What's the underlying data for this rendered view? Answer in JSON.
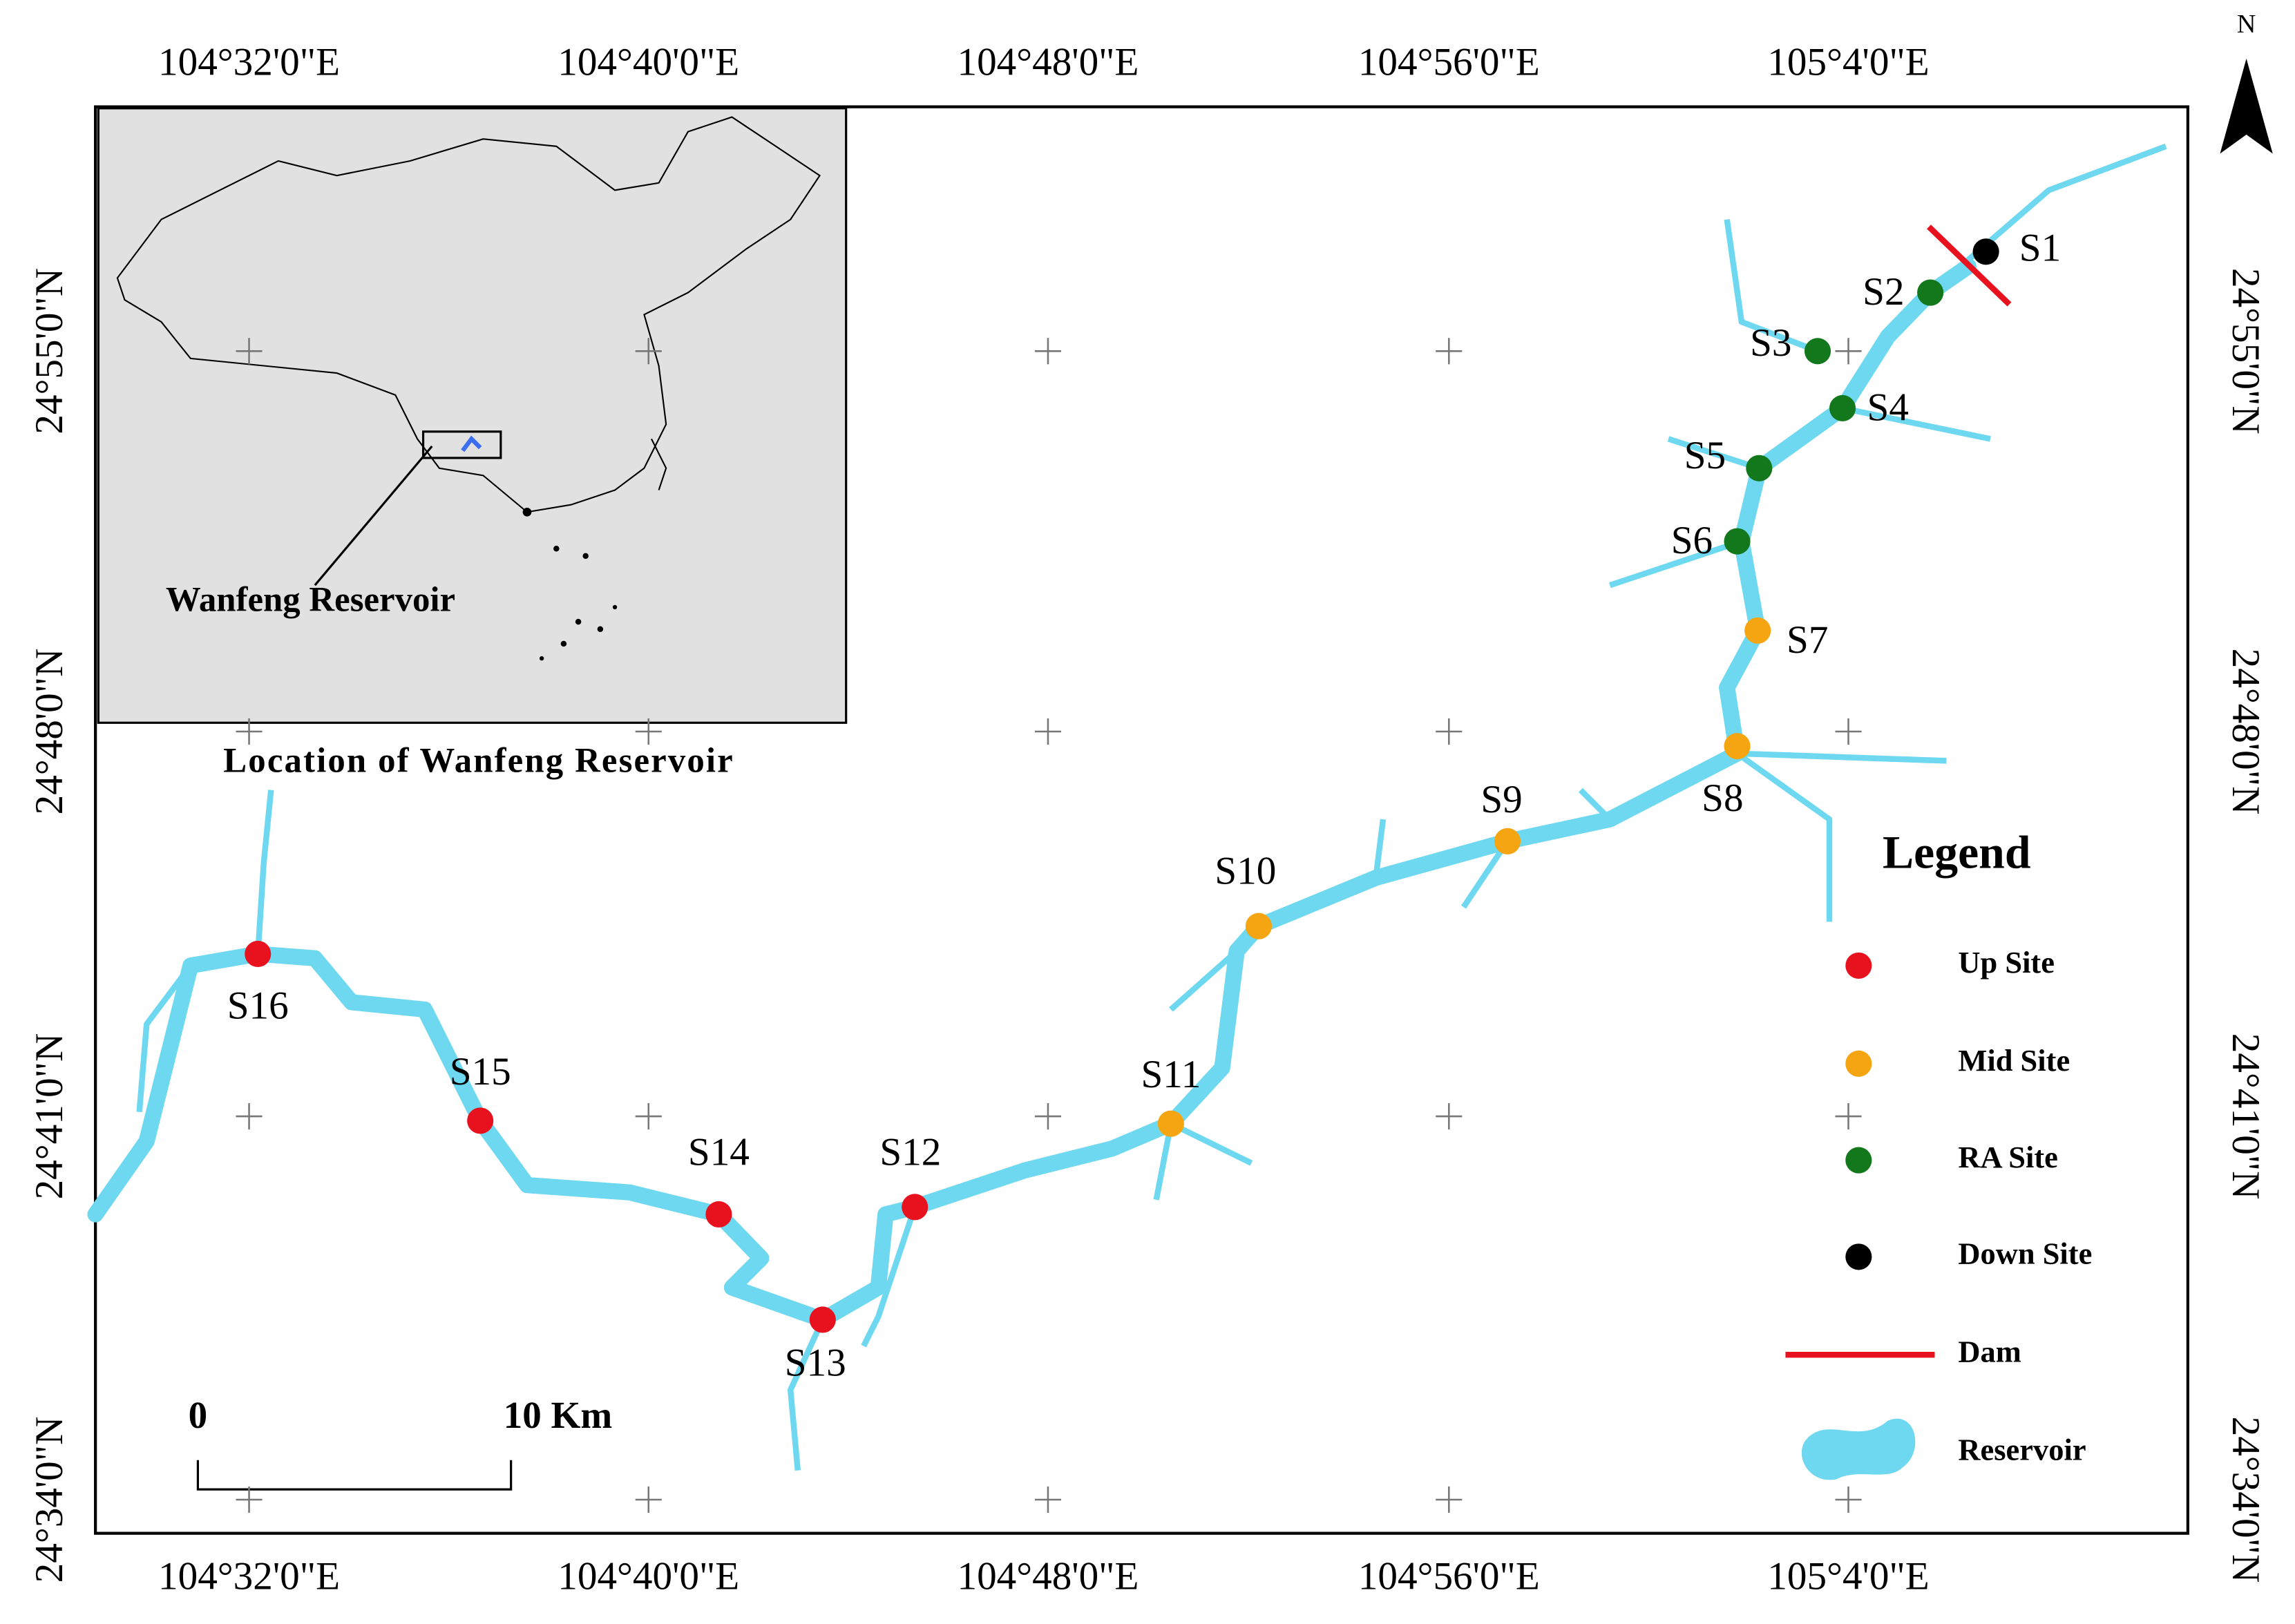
{
  "map": {
    "north_label": "N",
    "x_ticks": [
      "104°32'0\"E",
      "104°40'0\"E",
      "104°48'0\"E",
      "104°56'0\"E",
      "105°4'0\"E"
    ],
    "y_ticks": [
      "24°55'0\"N",
      "24°48'0\"N",
      "24°41'0\"N",
      "24°34'0\"N"
    ],
    "sites": [
      {
        "label": "S1",
        "group": "Down Site"
      },
      {
        "label": "S2",
        "group": "RA Site"
      },
      {
        "label": "S3",
        "group": "RA Site"
      },
      {
        "label": "S4",
        "group": "RA Site"
      },
      {
        "label": "S5",
        "group": "RA Site"
      },
      {
        "label": "S6",
        "group": "RA Site"
      },
      {
        "label": "S7",
        "group": "Mid Site"
      },
      {
        "label": "S8",
        "group": "Mid Site"
      },
      {
        "label": "S9",
        "group": "Mid Site"
      },
      {
        "label": "S10",
        "group": "Mid Site"
      },
      {
        "label": "S11",
        "group": "Mid Site"
      },
      {
        "label": "S12",
        "group": "Up Site"
      },
      {
        "label": "S13",
        "group": "Up Site"
      },
      {
        "label": "S14",
        "group": "Up Site"
      },
      {
        "label": "S15",
        "group": "Up Site"
      },
      {
        "label": "S16",
        "group": "Up Site"
      }
    ],
    "legend": {
      "title": "Legend",
      "items": [
        {
          "label": "Up Site",
          "color": "#e8121f"
        },
        {
          "label": "Mid Site",
          "color": "#f5a511"
        },
        {
          "label": "RA Site",
          "color": "#13771c"
        },
        {
          "label": "Down Site",
          "color": "#000000"
        },
        {
          "label": "Dam",
          "color": "#e8121f"
        },
        {
          "label": "Reservoir",
          "color": "#6dd8ef"
        }
      ]
    },
    "inset": {
      "label": "Wanfeng Reservoir",
      "caption": "Location of Wanfeng Reservoir"
    },
    "scale_bar": {
      "start": "0",
      "end": "10 Km"
    }
  }
}
